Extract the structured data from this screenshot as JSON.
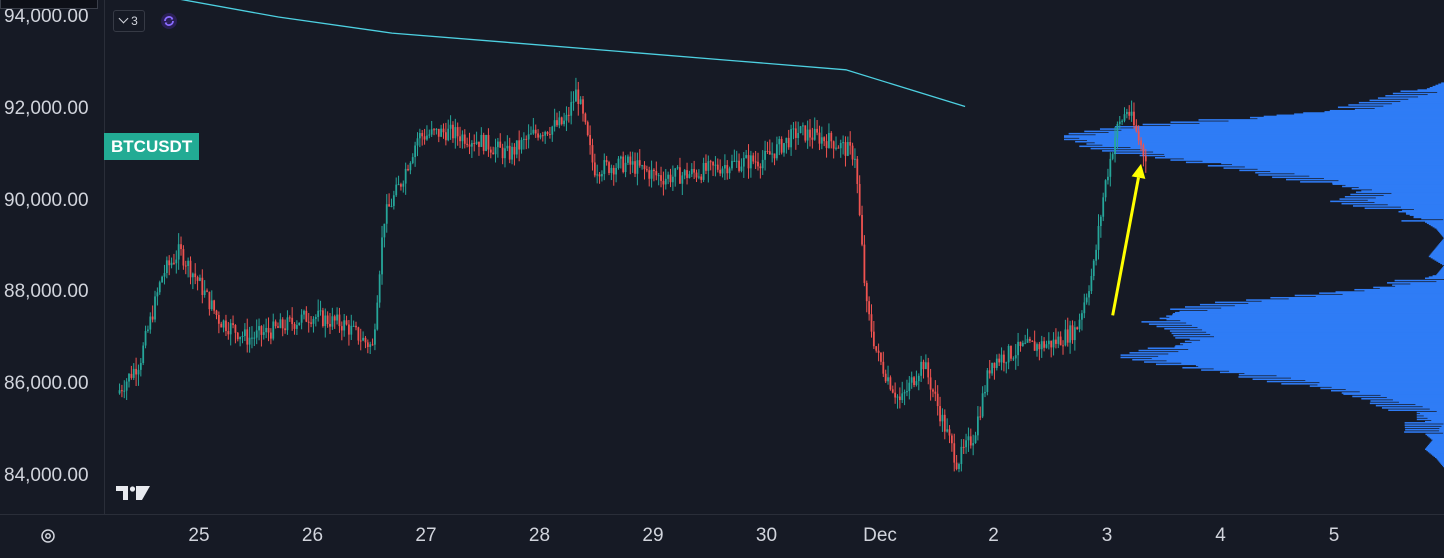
{
  "symbol": "BTCUSDT",
  "indicator_count": "3",
  "colors": {
    "background": "#161a25",
    "up_candle": "#26a69a",
    "down_candle": "#ef5350",
    "moving_average": "#4dd0e1",
    "volume_profile": "#2f7cf6",
    "arrow": "#ffff00",
    "badge": "#22ab94",
    "axis_text": "#d1d4dc"
  },
  "icons": {
    "settings": "settings-gear-icon",
    "sync": "sync-icon",
    "logo": "tradingview-logo",
    "chevron": "chevron-down-icon"
  },
  "chart_data": {
    "type": "candlestick",
    "title": "",
    "xlabel": "",
    "ylabel": "",
    "ylim": [
      83300,
      94400
    ],
    "y_ticks": [
      "94,000.00",
      "92,000.00",
      "90,000.00",
      "88,000.00",
      "86,000.00",
      "84,000.00"
    ],
    "x_ticks": [
      "25",
      "26",
      "27",
      "28",
      "29",
      "30",
      "Dec",
      "2",
      "3",
      "4",
      "5"
    ],
    "x_tick_days": [
      25,
      26,
      27,
      28,
      29,
      30,
      31,
      32,
      33,
      34,
      35
    ],
    "xlim_days": [
      24.28,
      36.0
    ],
    "price_path": [
      {
        "t": 24.3,
        "p": 85800
      },
      {
        "t": 24.5,
        "p": 86500
      },
      {
        "t": 24.7,
        "p": 88400
      },
      {
        "t": 24.85,
        "p": 88900
      },
      {
        "t": 25.0,
        "p": 88300
      },
      {
        "t": 25.2,
        "p": 87400
      },
      {
        "t": 25.45,
        "p": 87000
      },
      {
        "t": 25.7,
        "p": 87200
      },
      {
        "t": 26.0,
        "p": 87500
      },
      {
        "t": 26.3,
        "p": 87300
      },
      {
        "t": 26.55,
        "p": 86800
      },
      {
        "t": 26.65,
        "p": 89600
      },
      {
        "t": 26.8,
        "p": 90400
      },
      {
        "t": 26.95,
        "p": 91400
      },
      {
        "t": 27.2,
        "p": 91500
      },
      {
        "t": 27.5,
        "p": 91300
      },
      {
        "t": 27.75,
        "p": 91000
      },
      {
        "t": 28.0,
        "p": 91500
      },
      {
        "t": 28.25,
        "p": 91700
      },
      {
        "t": 28.35,
        "p": 92400
      },
      {
        "t": 28.5,
        "p": 90700
      },
      {
        "t": 28.8,
        "p": 90800
      },
      {
        "t": 29.1,
        "p": 90500
      },
      {
        "t": 29.4,
        "p": 90600
      },
      {
        "t": 29.7,
        "p": 90800
      },
      {
        "t": 30.0,
        "p": 90900
      },
      {
        "t": 30.3,
        "p": 91500
      },
      {
        "t": 30.6,
        "p": 91300
      },
      {
        "t": 30.8,
        "p": 91000
      },
      {
        "t": 30.9,
        "p": 87700
      },
      {
        "t": 31.0,
        "p": 86600
      },
      {
        "t": 31.2,
        "p": 85600
      },
      {
        "t": 31.4,
        "p": 86500
      },
      {
        "t": 31.6,
        "p": 85000
      },
      {
        "t": 31.7,
        "p": 84300
      },
      {
        "t": 31.85,
        "p": 84900
      },
      {
        "t": 32.0,
        "p": 86500
      },
      {
        "t": 32.3,
        "p": 86800
      },
      {
        "t": 32.55,
        "p": 86900
      },
      {
        "t": 32.75,
        "p": 87200
      },
      {
        "t": 32.9,
        "p": 88500
      },
      {
        "t": 33.0,
        "p": 90300
      },
      {
        "t": 33.1,
        "p": 91500
      },
      {
        "t": 33.2,
        "p": 92000
      },
      {
        "t": 33.35,
        "p": 91000
      }
    ],
    "moving_average": {
      "t": [
        24.8,
        25.7,
        26.7,
        27.7,
        28.7,
        29.7,
        30.7,
        31.75
      ],
      "p": [
        94400,
        94000,
        93650,
        93450,
        93250,
        93050,
        92850,
        92050
      ]
    },
    "annotation_arrow": {
      "from": {
        "t": 33.05,
        "p": 87500
      },
      "to": {
        "t": 33.3,
        "p": 90800
      },
      "color": "#ffff00"
    },
    "volume_profile": {
      "price": [
        92600,
        92400,
        92200,
        92000,
        91800,
        91600,
        91400,
        91200,
        91000,
        90800,
        90600,
        90400,
        90200,
        90000,
        89800,
        89600,
        89400,
        89200,
        89000,
        88800,
        88600,
        88400,
        88200,
        88000,
        87800,
        87600,
        87400,
        87200,
        87000,
        86800,
        86600,
        86400,
        86200,
        86000,
        85800,
        85600,
        85400,
        85200,
        85000,
        84800,
        84600,
        84400,
        84200
      ],
      "volume": [
        0.0,
        0.06,
        0.15,
        0.25,
        0.55,
        0.85,
        1.0,
        0.9,
        0.78,
        0.6,
        0.45,
        0.3,
        0.18,
        0.25,
        0.12,
        0.06,
        0.02,
        0.0,
        0.02,
        0.04,
        0.0,
        0.02,
        0.1,
        0.28,
        0.55,
        0.7,
        0.75,
        0.68,
        0.65,
        0.72,
        0.82,
        0.68,
        0.5,
        0.35,
        0.22,
        0.14,
        0.07,
        0.05,
        0.06,
        0.03,
        0.05,
        0.02,
        0.0
      ]
    }
  }
}
